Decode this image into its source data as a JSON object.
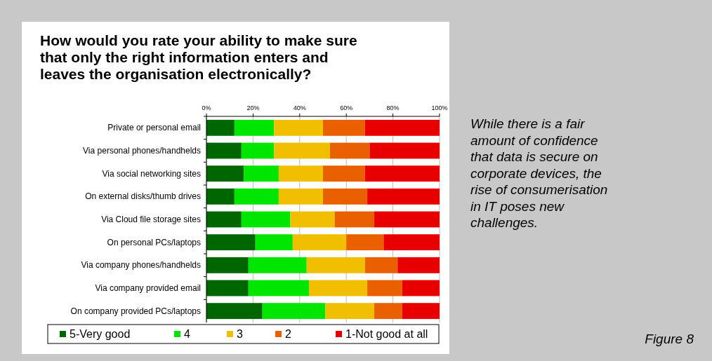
{
  "chart_data": {
    "type": "bar",
    "orientation": "horizontal",
    "stacked": true,
    "title": "How would you rate your ability to make sure that only the right information enters and leaves the organisation electronically?",
    "categories": [
      "Private or personal email",
      "Via personal phones/handhelds",
      "Via social networking sites",
      "On external disks/thumb drives",
      "Via Cloud file storage sites",
      "On personal PCs/laptops",
      "Via company phones/handhelds",
      "Via company provided email",
      "On company provided PCs/laptops"
    ],
    "series": [
      {
        "name": "5-Very good",
        "color": "#006600",
        "values": [
          12,
          15,
          16,
          12,
          15,
          21,
          18,
          18,
          24
        ]
      },
      {
        "name": "4",
        "color": "#00e600",
        "values": [
          17,
          14,
          15,
          19,
          21,
          16,
          25,
          26,
          27
        ]
      },
      {
        "name": "3",
        "color": "#f0c000",
        "values": [
          21,
          24,
          19,
          19,
          19,
          23,
          25,
          25,
          21
        ]
      },
      {
        "name": "2",
        "color": "#e86000",
        "values": [
          18,
          17,
          18,
          19,
          17,
          16,
          14,
          15,
          12
        ]
      },
      {
        "name": "1-Not good at all",
        "color": "#e80000",
        "values": [
          32,
          30,
          32,
          31,
          28,
          24,
          18,
          16,
          16
        ]
      }
    ],
    "xlim": [
      0,
      100
    ],
    "xticks": [
      {
        "value": 0,
        "label": "0%"
      },
      {
        "value": 20,
        "label": "20%"
      },
      {
        "value": 40,
        "label": "40%"
      },
      {
        "value": 60,
        "label": "60%"
      },
      {
        "value": 80,
        "label": "80%"
      },
      {
        "value": 100,
        "label": "100%"
      }
    ],
    "grid": "x",
    "legend": "bottom",
    "annotations": [
      "While there is a fair amount of confidence that data is secure on corporate devices, the rise of consumerisation in IT poses new challenges.",
      "Figure 8"
    ]
  }
}
